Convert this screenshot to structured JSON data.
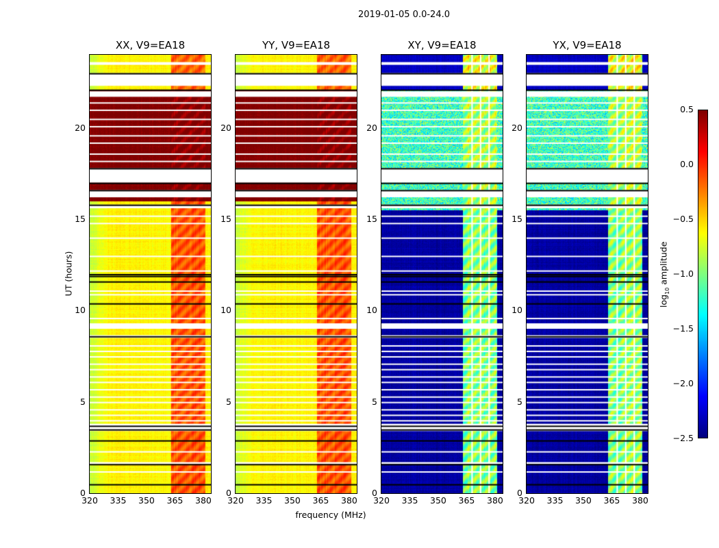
{
  "chart_data": {
    "type": "heatmap",
    "title": "2019-01-05 0.0-24.0",
    "xlabel": "frequency (MHz)",
    "ylabel": "UT (hours)",
    "xlim": [
      320,
      384
    ],
    "ylim": [
      0,
      24
    ],
    "xticks": [
      "320",
      "335",
      "350",
      "365",
      "380"
    ],
    "yticks": [
      "0",
      "5",
      "10",
      "15",
      "20"
    ],
    "colorbar": {
      "label": "log10 amplitude",
      "label_main": "log",
      "label_sub": "10",
      "label_rest": " amplitude",
      "range": [
        -2.5,
        0.5
      ],
      "ticks": [
        "0.5",
        "0.0",
        "−0.5",
        "−1.0",
        "−1.5",
        "−2.0",
        "−2.5"
      ],
      "colormap": "jet"
    },
    "panels": [
      {
        "title": "XX, V9=EA18",
        "group": "parallel"
      },
      {
        "title": "YY, V9=EA18",
        "group": "parallel"
      },
      {
        "title": "XY, V9=EA18",
        "group": "cross"
      },
      {
        "title": "YX, V9=EA18",
        "group": "cross"
      }
    ],
    "band_mhz": [
      363,
      381
    ],
    "band_gaps_mhz": [
      367.5,
      372,
      376.5
    ],
    "segments": {
      "parallel": [
        {
          "t": [
            0,
            16
          ],
          "base": -0.6,
          "band": -0.1
        },
        {
          "t": [
            16,
            22.1
          ],
          "base": 0.5,
          "band": 0.5
        },
        {
          "t": [
            22.1,
            24
          ],
          "base": -0.6,
          "band": -0.15
        }
      ],
      "cross": [
        {
          "t": [
            0,
            15.5
          ],
          "base": -2.4,
          "band": -0.9
        },
        {
          "t": [
            15.5,
            22.1
          ],
          "base": -1.2,
          "band": -0.8
        },
        {
          "t": [
            22.1,
            24
          ],
          "base": -2.3,
          "band": -0.6
        }
      ]
    },
    "flagged_hours": [
      [
        23.45,
        23.6
      ],
      [
        22.3,
        23.0
      ],
      [
        21.7,
        22.0
      ],
      [
        17.0,
        17.8
      ],
      [
        16.2,
        16.6
      ],
      [
        15.6,
        15.8
      ],
      [
        9.0,
        9.3
      ],
      [
        8.5,
        8.65
      ],
      [
        3.4,
        3.8
      ],
      [
        1.6,
        1.7
      ]
    ],
    "flagged_lines_hours": [
      1.2,
      2.3,
      4.0,
      4.3,
      4.6,
      5.0,
      5.3,
      5.7,
      6.1,
      6.4,
      6.8,
      7.1,
      7.5,
      7.8,
      8.1,
      9.6,
      10.9,
      11.1,
      12.2,
      13.0,
      14.0,
      14.8,
      15.2,
      18.2,
      18.6,
      19.2,
      19.6,
      20.1,
      20.5,
      21.0,
      21.4
    ],
    "black_lines_hours": [
      0.5,
      1.6,
      2.9,
      3.5,
      3.7,
      8.6,
      10.4,
      11.6,
      11.9,
      12.0,
      15.8,
      16.6,
      17.0,
      17.8,
      22.1,
      23.0
    ]
  }
}
